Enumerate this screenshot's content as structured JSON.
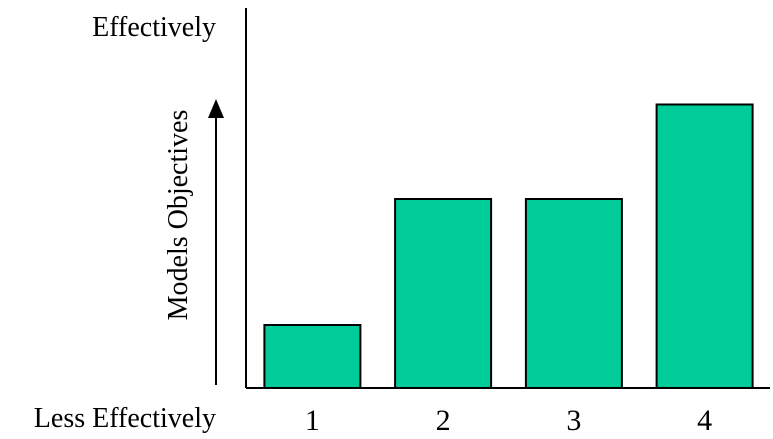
{
  "chart_data": {
    "type": "bar",
    "categories": [
      "1",
      "2",
      "3",
      "4"
    ],
    "values": [
      1,
      3,
      3,
      4.5
    ],
    "ylim": [
      0,
      6
    ],
    "title": "",
    "xlabel": "",
    "ylabel": "Models Objectives",
    "y_top_label": "Effectively",
    "y_bottom_label": "Less Effectively",
    "grid": false,
    "legend": "none",
    "colors": {
      "bar": "#00CC99",
      "bar_stroke": "#000000",
      "axis": "#000000"
    }
  }
}
